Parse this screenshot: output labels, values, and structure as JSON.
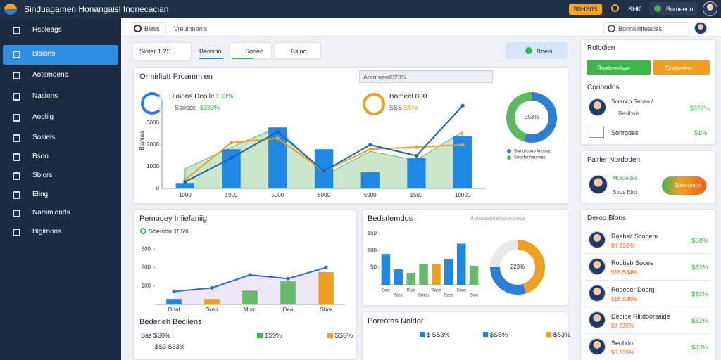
{
  "header": {
    "title": "Sinduagamen Honangaisl Inonecacian",
    "badge": "S0HS0S",
    "user": "SHK",
    "status": "Bomeedo"
  },
  "sidebar": {
    "active": 1,
    "items": [
      "Hsoleags",
      "Blsions",
      "Aotemoens",
      "Nasions",
      "Aooliig",
      "Sosiels",
      "Bsoo",
      "Sbiors",
      "Eling",
      "Narsmlends",
      "Bigimons"
    ]
  },
  "toolbar": {
    "tab": "Blinis",
    "breadcrumb": "Vreuinnenls",
    "search": "Bonniultitesclss"
  },
  "filters": {
    "chips": [
      "Sloter 1.2S",
      "Barrsbo",
      "Sorieo",
      "Bsino"
    ],
    "select": "Boeis"
  },
  "overview": {
    "title": "Ormirliatt Proammien",
    "search": "Aommerd023S",
    "kpi1": {
      "label": "Dlaions Deoile",
      "value": "133%",
      "sub": "Sarisce",
      "delta": "$333%"
    },
    "kpi2": {
      "label": "Bomeel 800",
      "sub": "SSS",
      "delta": "SS%"
    }
  },
  "chart_data": [
    {
      "type": "combo",
      "ylabel": "Blaniaa",
      "ylim": [
        0,
        4000
      ],
      "yticks": [
        0,
        1000,
        2000,
        3000
      ],
      "categories": [
        "1000",
        "1900",
        "5000",
        "8000",
        "5900",
        "1500",
        "10000"
      ],
      "series": [
        {
          "type": "area",
          "color": "#66bb6a",
          "values": [
            900,
            1900,
            2800,
            600,
            1700,
            1300,
            2600
          ]
        },
        {
          "type": "bar",
          "color": "#1e88e5",
          "values": [
            250,
            1800,
            2800,
            1800,
            750,
            1400,
            2400
          ]
        },
        {
          "type": "line",
          "color": "#f0a020",
          "values": [
            400,
            2100,
            2300,
            800,
            1800,
            1900,
            2000
          ]
        },
        {
          "type": "line",
          "color": "#1565c0",
          "values": [
            300,
            1400,
            2600,
            800,
            2000,
            1500,
            3800
          ]
        }
      ]
    },
    {
      "type": "pie",
      "center_label": "553%",
      "values": [
        55,
        45
      ],
      "colors": [
        "#2e7dd7",
        "#5cb85c"
      ],
      "labels": [
        "Ssmorbuoo fossnas",
        "Soosbo fonsmes"
      ]
    },
    {
      "type": "barline",
      "title": "Pemodey Iniiefaniig",
      "subtitle": "Soenion 155%",
      "ylim": [
        0,
        350
      ],
      "yticks": [
        100,
        200,
        300
      ],
      "categories": [
        "Ddal",
        "Sreo",
        "Morn",
        "Daa",
        "Sbre"
      ],
      "values": [
        30,
        30,
        75,
        125,
        175
      ],
      "colors": [
        "#1e88e5",
        "#f0a020",
        "#66bb6a",
        "#66bb6a",
        "#f0a020"
      ],
      "line_values": [
        70,
        90,
        160,
        140,
        200
      ],
      "line_color": "#2f6fc0"
    },
    {
      "type": "bar",
      "title": "Bedsrlemdos",
      "note": "Aouoassnecwordcocs",
      "ylim": [
        0,
        160
      ],
      "yticks": [
        50,
        100,
        150
      ],
      "categories": [
        "Sois",
        "Sais",
        "Rios",
        "Smss",
        "Rase",
        "Sosa",
        "Sbos",
        "Sios"
      ],
      "values": [
        90,
        45,
        35,
        60,
        60,
        75,
        120,
        55
      ],
      "colors": [
        "#1e88e5",
        "#1e88e5",
        "#66bb6a",
        "#66bb6a",
        "#f0a020",
        "#1e88e5",
        "#1e88e5",
        "#66bb6a"
      ]
    },
    {
      "type": "pie",
      "center_label": "223%",
      "values": [
        45,
        30,
        25
      ],
      "colors": [
        "#f0a020",
        "#2e7dd7",
        "#e8e8e8"
      ]
    }
  ],
  "sales": {
    "title": "Bederleh Becilens",
    "line1": "Sas $S0%",
    "line2": "$S3 S33%",
    "legend": [
      "$S9%",
      "$SS%"
    ]
  },
  "orders": {
    "title": "Poreotas Noldor",
    "legend": [
      "$ SS3%",
      "$SS%",
      "$S3%"
    ]
  },
  "right": {
    "card1": {
      "title": "Rolodien",
      "buttons": [
        "Bnebrediws",
        "Sorbedse"
      ],
      "section": "Coriondos",
      "items": [
        {
          "name": "Sorsnco Seoeo /",
          "sub": "Besibnis",
          "value": "$322%"
        },
        {
          "name": "Sonrgdes",
          "value": "$1%"
        }
      ]
    },
    "card2": {
      "title": "Fairler Nordoden",
      "name": "Moroedes",
      "sub": "Sbos Eiro",
      "pill": "Sbeenmdo"
    },
    "card3": {
      "title": "Derop Blons",
      "items": [
        {
          "name": "Roebsit Scodem",
          "sub": "$8 S3S%",
          "value": "$S8%"
        },
        {
          "name": "Roobeb Sooes",
          "sub": "$18 S34%",
          "value": "$33%"
        },
        {
          "name": "Rodeder Doerg",
          "sub": "$18 S35%",
          "value": "$33%"
        },
        {
          "name": "Deoibe Rlitdoorsaide",
          "sub": "$8 S35%",
          "value": "$33%"
        },
        {
          "name": "Seohdo",
          "sub": "$6 S35%",
          "value": "$33%"
        }
      ]
    }
  }
}
